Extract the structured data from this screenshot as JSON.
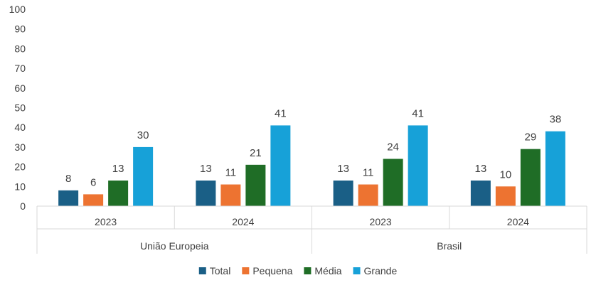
{
  "chart_data": {
    "type": "bar",
    "title": "",
    "xlabel": "",
    "ylabel": "",
    "ylim": [
      0,
      100
    ],
    "yticks": [
      0,
      10,
      20,
      30,
      40,
      50,
      60,
      70,
      80,
      90,
      100
    ],
    "grid": false,
    "legend_position": "bottom",
    "groups": [
      {
        "label": "União Europeia",
        "categories": [
          "2023",
          "2024"
        ]
      },
      {
        "label": "Brasil",
        "categories": [
          "2023",
          "2024"
        ]
      }
    ],
    "categories": [
      "2023",
      "2024",
      "2023",
      "2024"
    ],
    "series": [
      {
        "name": "Total",
        "color": "#1a5f86",
        "values": [
          8,
          13,
          13,
          13
        ]
      },
      {
        "name": "Pequena",
        "color": "#ed7331",
        "values": [
          6,
          11,
          11,
          10
        ]
      },
      {
        "name": "Média",
        "color": "#1f6d26",
        "values": [
          13,
          21,
          24,
          29
        ]
      },
      {
        "name": "Grande",
        "color": "#17a1d8",
        "values": [
          30,
          41,
          41,
          38
        ]
      }
    ]
  }
}
